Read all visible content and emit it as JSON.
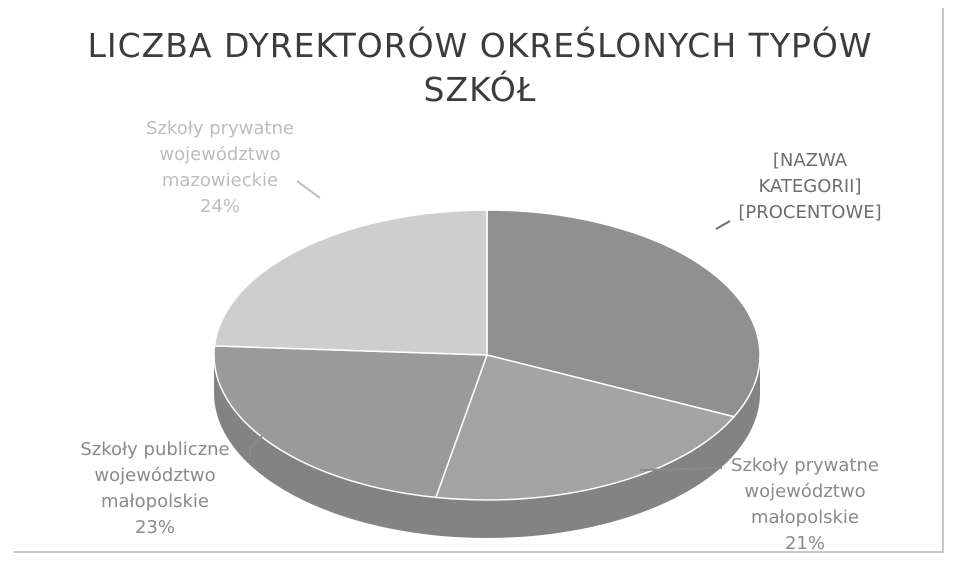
{
  "chart_data": {
    "type": "pie",
    "title_line1": "LICZBA DYREKTORÓW OKREŚLONYCH TYPÓW",
    "title_line2": "SZKÓŁ",
    "slices": [
      {
        "label_lines": [
          "[NAZWA",
          "KATEGORII]",
          "[PROCENTOWE]"
        ],
        "value": 32,
        "color": "#909090",
        "label_color": "#6e6e6e"
      },
      {
        "label_lines": [
          "Szkoły prywatne",
          "województwo",
          "małopolskie",
          "21%"
        ],
        "value": 21,
        "color": "#a3a3a3",
        "label_color": "#8a8a8a"
      },
      {
        "label_lines": [
          "Szkoły publiczne",
          "województwo",
          "małopolskie",
          "23%"
        ],
        "value": 23,
        "color": "#9a9a9a",
        "label_color": "#8a8a8a"
      },
      {
        "label_lines": [
          "Szkoły prywatne",
          "województwo",
          "mazowieckie",
          "24%"
        ],
        "value": 24,
        "color": "#cecece",
        "label_color": "#bdbdbd"
      }
    ],
    "side_color": "#838383"
  }
}
